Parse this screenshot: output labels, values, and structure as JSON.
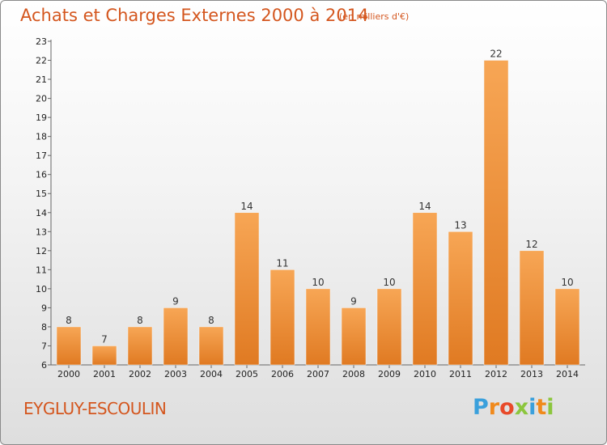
{
  "header": {
    "title": "Achats et Charges Externes 2000 à 2014",
    "unit": "(en milliers d'€)"
  },
  "footer": {
    "place": "EYGLUY-ESCOULIN",
    "logo_letters": [
      "P",
      "r",
      "o",
      "x",
      "i",
      "t",
      "i"
    ],
    "logo_colors": [
      "#3aa0dc",
      "#f08a1c",
      "#e84a2a",
      "#8cc63e",
      "#3aa0dc",
      "#f08a1c",
      "#8cc63e"
    ]
  },
  "colors": {
    "bar_light": "#f7a655",
    "bar_dark": "#e07a22",
    "title": "#d4561e"
  },
  "chart_data": {
    "type": "bar",
    "categories": [
      "2000",
      "2001",
      "2002",
      "2003",
      "2004",
      "2005",
      "2006",
      "2007",
      "2008",
      "2009",
      "2010",
      "2011",
      "2012",
      "2013",
      "2014"
    ],
    "values": [
      8,
      7,
      8,
      9,
      8,
      14,
      11,
      10,
      9,
      10,
      14,
      13,
      22,
      12,
      10
    ],
    "title": "Achats et Charges Externes 2000 à 2014",
    "xlabel": "",
    "ylabel": "",
    "ylim": [
      6,
      23
    ],
    "yticks": [
      6,
      7,
      8,
      9,
      10,
      11,
      12,
      13,
      14,
      15,
      16,
      17,
      18,
      19,
      20,
      21,
      22,
      23
    ],
    "grid": false,
    "legend": "none"
  }
}
